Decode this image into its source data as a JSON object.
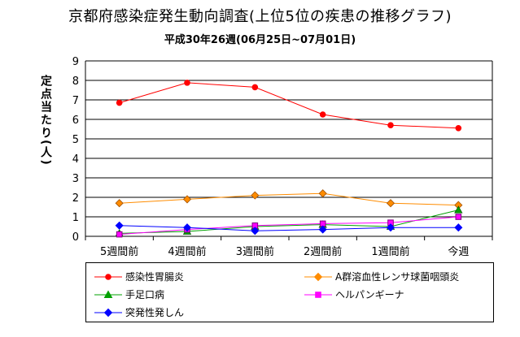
{
  "chart_data": {
    "type": "line",
    "title": "京都府感染症発生動向調査(上位5位の疾患の推移グラフ)",
    "subtitle": "平成30年26週(06月25日~07月01日)",
    "ylabel": "定点当たり(人)",
    "xlabel": "",
    "ylim": [
      0,
      9
    ],
    "yticks": [
      "0",
      "1",
      "2",
      "3",
      "4",
      "5",
      "6",
      "7",
      "8",
      "9"
    ],
    "grid": "horizontal",
    "legend_position": "bottom",
    "categories": [
      "5週間前",
      "4週間前",
      "3週間前",
      "2週間前",
      "1週間前",
      "今週"
    ],
    "series": [
      {
        "name": "感染性胃腸炎",
        "color": "#ff0000",
        "marker": "circle",
        "values": [
          6.85,
          7.88,
          7.65,
          6.25,
          5.7,
          5.55
        ]
      },
      {
        "name": "A群溶血性レンサ球菌咽頭炎",
        "color": "#ff8c00",
        "marker": "diamond",
        "values": [
          1.7,
          1.9,
          2.1,
          2.2,
          1.7,
          1.6
        ]
      },
      {
        "name": "手足口病",
        "color": "#00a000",
        "marker": "triangle",
        "values": [
          0.15,
          0.25,
          0.5,
          0.6,
          0.5,
          1.35
        ]
      },
      {
        "name": "ヘルパンギーナ",
        "color": "#ff00ff",
        "marker": "square",
        "values": [
          0.1,
          0.35,
          0.55,
          0.65,
          0.7,
          1.0
        ]
      },
      {
        "name": "突発性発しん",
        "color": "#0000ff",
        "marker": "diamond",
        "values": [
          0.55,
          0.45,
          0.28,
          0.35,
          0.45,
          0.45
        ]
      }
    ]
  }
}
